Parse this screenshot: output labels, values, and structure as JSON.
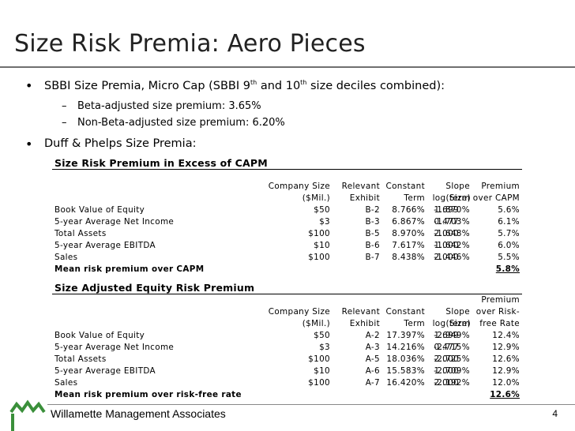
{
  "slide": {
    "title": "Size Risk Premia: Aero Pieces",
    "bullet1": {
      "pre": "SBBI Size Premia, Micro Cap (SBBI 9",
      "sup1": "th",
      "mid": " and 10",
      "sup2": "th",
      "post": " size deciles combined):"
    },
    "sub1": "Beta-adjusted size premium:  3.65%",
    "sub2": "Non-Beta-adjusted size premium:  6.20%",
    "bullet2": "Duff & Phelps Size Premia:",
    "footer": "Willamette Management Associates",
    "page_number": "4"
  },
  "table1": {
    "title": "Size Risk Premium in Excess of CAPM",
    "header1": [
      "",
      "Company Size",
      "Relevant",
      "Constant",
      "Slope",
      "",
      "Premium"
    ],
    "header2": [
      "",
      "($Mil.)",
      "Exhibit",
      "Term",
      "term",
      "log(Size)",
      "over CAPM"
    ],
    "rows": [
      [
        "Book Value of Equity",
        "$50",
        "B-2",
        "8.766%",
        "-1.870%",
        "1.699",
        "5.6%"
      ],
      [
        "5-year Average Net Income",
        "$3",
        "B-3",
        "6.867%",
        "-1.703%",
        "0.477",
        "6.1%"
      ],
      [
        "Total Assets",
        "$100",
        "B-5",
        "8.970%",
        "-1.648%",
        "2.000",
        "5.7%"
      ],
      [
        "5-year Average EBITDA",
        "$10",
        "B-6",
        "7.617%",
        "-1.642%",
        "1.000",
        "6.0%"
      ],
      [
        "Sales",
        "$100",
        "B-7",
        "8.438%",
        "-1.446%",
        "2.000",
        "5.5%"
      ]
    ],
    "mean_label": "Mean risk premium over CAPM",
    "mean_value": "5.8%"
  },
  "table2": {
    "title": "Size Adjusted Equity Risk Premium",
    "header0": "Premium",
    "header1": [
      "",
      "Company Size",
      "Relevant",
      "Constant",
      "Slope",
      "",
      "over Risk-"
    ],
    "header2": [
      "",
      "($Mil.)",
      "Exhibit",
      "Term",
      "term",
      "log(Size)",
      "free Rate"
    ],
    "rows": [
      [
        "Book Value of Equity",
        "$50",
        "A-2",
        "17.397%",
        "-2.949%",
        "1.699",
        "12.4%"
      ],
      [
        "5-year Average Net Income",
        "$3",
        "A-3",
        "14.216%",
        "-2.715%",
        "0.477",
        "12.9%"
      ],
      [
        "Total Assets",
        "$100",
        "A-5",
        "18.036%",
        "-2.725%",
        "2.000",
        "12.6%"
      ],
      [
        "5-year Average EBITDA",
        "$10",
        "A-6",
        "15.583%",
        "-2.709%",
        "1.000",
        "12.9%"
      ],
      [
        "Sales",
        "$100",
        "A-7",
        "16.420%",
        "-2.192%",
        "2.000",
        "12.0%"
      ]
    ],
    "mean_label": "Mean risk premium over risk-free rate",
    "mean_value": "12.6%"
  },
  "colors": {
    "logo_green": "#3a8f3a",
    "text": "#000000",
    "title": "#222222"
  },
  "icons": {
    "logo": "mountain-logo-icon"
  }
}
